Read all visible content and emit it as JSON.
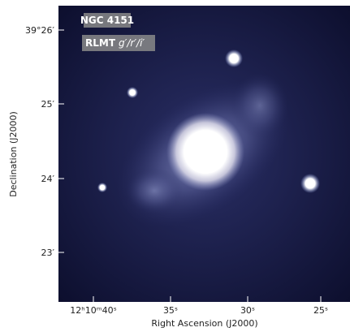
{
  "image": {
    "object_label": "NGC 4151",
    "telescope_label": "RLMT",
    "filters_label": "g′/r′/i′"
  },
  "axes": {
    "x": {
      "label": "Right Ascension (J2000)",
      "ticks": [
        "12ʰ10ᵐ40ˢ",
        "35ˢ",
        "30ˢ",
        "25ˢ"
      ]
    },
    "y": {
      "label": "Declination (J2000)",
      "ticks": [
        "39°26′",
        "25′",
        "24′",
        "23′"
      ]
    }
  }
}
